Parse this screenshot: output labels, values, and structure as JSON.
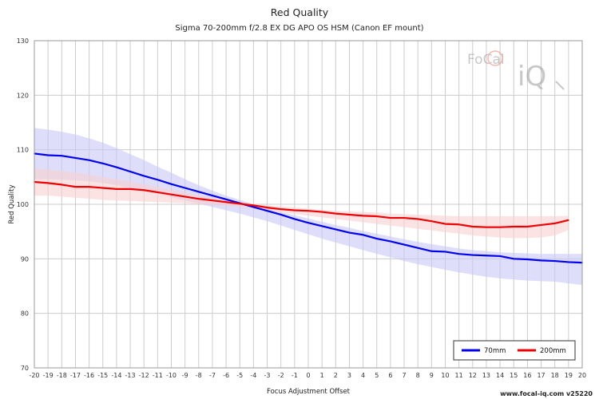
{
  "chart_data": {
    "type": "line",
    "title": "Red Quality",
    "subtitle": "Sigma 70-200mm f/2.8 EX DG APO OS HSM (Canon EF mount)",
    "xlabel": "Focus Adjustment Offset",
    "ylabel": "Red Quality",
    "xlim": [
      -20,
      20
    ],
    "ylim": [
      70,
      130
    ],
    "x_ticks": [
      -20,
      -19,
      -18,
      -17,
      -16,
      -15,
      -14,
      -13,
      -12,
      -11,
      -10,
      -9,
      -8,
      -7,
      -6,
      -5,
      -4,
      -3,
      -2,
      -1,
      0,
      1,
      2,
      3,
      4,
      5,
      6,
      7,
      8,
      9,
      10,
      11,
      12,
      13,
      14,
      15,
      16,
      17,
      18,
      19,
      20
    ],
    "y_ticks": [
      70,
      80,
      90,
      100,
      110,
      120,
      130
    ],
    "grid": true,
    "legend_position": "bottom-right",
    "series": [
      {
        "name": "70mm",
        "color": "#0000ee",
        "band_color": "#c8c8f8",
        "x": [
          -20,
          -19,
          -18,
          -17,
          -16,
          -15,
          -14,
          -13,
          -12,
          -11,
          -10,
          -9,
          -8,
          -7,
          -6,
          -5,
          -4,
          -3,
          -2,
          -1,
          0,
          1,
          2,
          3,
          4,
          5,
          6,
          7,
          8,
          9,
          10,
          11,
          12,
          13,
          14,
          15,
          16,
          17,
          18,
          19,
          20
        ],
        "values": [
          109.3,
          109.0,
          108.9,
          108.5,
          108.1,
          107.5,
          106.8,
          106.0,
          105.2,
          104.5,
          103.7,
          103.0,
          102.3,
          101.6,
          100.9,
          100.2,
          99.5,
          98.8,
          98.1,
          97.3,
          96.6,
          96.0,
          95.4,
          94.8,
          94.4,
          93.7,
          93.2,
          92.6,
          92.0,
          91.4,
          91.3,
          90.9,
          90.7,
          90.6,
          90.5,
          90.0,
          89.9,
          89.7,
          89.6,
          89.4,
          89.3
        ],
        "upper": [
          114.0,
          113.7,
          113.3,
          112.8,
          112.1,
          111.3,
          110.3,
          109.2,
          108.1,
          106.9,
          105.8,
          104.6,
          103.5,
          102.5,
          101.6,
          100.8,
          100.0,
          99.3,
          98.6,
          98.0,
          97.4,
          96.8,
          96.2,
          95.7,
          95.1,
          94.6,
          94.1,
          93.6,
          93.1,
          92.7,
          92.3,
          91.9,
          91.6,
          91.4,
          91.2,
          91.1,
          91.0,
          90.9,
          90.9,
          90.9,
          90.9
        ],
        "lower": [
          104.6,
          104.6,
          104.5,
          104.4,
          104.2,
          103.9,
          103.5,
          103.0,
          102.5,
          101.9,
          101.3,
          100.7,
          100.1,
          99.5,
          98.9,
          98.3,
          97.6,
          96.9,
          96.1,
          95.3,
          94.5,
          93.7,
          93.0,
          92.3,
          91.6,
          90.9,
          90.3,
          89.6,
          89.0,
          88.5,
          88.0,
          87.5,
          87.1,
          86.7,
          86.4,
          86.2,
          86.0,
          85.9,
          85.8,
          85.5,
          85.2
        ]
      },
      {
        "name": "200mm",
        "color": "#ee0000",
        "band_color": "#f8d0d0",
        "x": [
          -20,
          -19,
          -18,
          -17,
          -16,
          -15,
          -14,
          -13,
          -12,
          -11,
          -10,
          -9,
          -8,
          -7,
          -6,
          -5,
          -4,
          -3,
          -2,
          -1,
          0,
          1,
          2,
          3,
          4,
          5,
          6,
          7,
          8,
          9,
          10,
          11,
          12,
          13,
          14,
          15,
          16,
          17,
          18,
          19
        ],
        "values": [
          104.1,
          103.9,
          103.6,
          103.2,
          103.2,
          103.0,
          102.8,
          102.8,
          102.6,
          102.2,
          101.8,
          101.4,
          101.0,
          100.7,
          100.4,
          100.1,
          99.8,
          99.4,
          99.1,
          98.9,
          98.8,
          98.6,
          98.3,
          98.1,
          97.9,
          97.8,
          97.5,
          97.5,
          97.3,
          96.9,
          96.4,
          96.3,
          95.9,
          95.8,
          95.8,
          95.9,
          95.9,
          96.2,
          96.5,
          97.1
        ],
        "upper": [
          106.6,
          106.4,
          106.1,
          105.8,
          105.4,
          105.0,
          104.6,
          104.2,
          103.7,
          103.2,
          102.7,
          102.2,
          101.7,
          101.2,
          100.8,
          100.4,
          100.1,
          99.8,
          99.6,
          99.4,
          99.2,
          99.0,
          98.8,
          98.7,
          98.6,
          98.5,
          98.3,
          98.2,
          98.1,
          98.0,
          97.9,
          97.8,
          97.8,
          97.8,
          97.8,
          97.8,
          97.8,
          97.8,
          97.8,
          97.9
        ],
        "lower": [
          101.6,
          101.6,
          101.4,
          101.2,
          101.0,
          100.8,
          100.7,
          100.6,
          100.5,
          100.4,
          100.3,
          100.2,
          100.0,
          99.9,
          99.7,
          99.5,
          99.2,
          98.9,
          98.5,
          98.2,
          97.9,
          97.6,
          97.3,
          97.0,
          96.7,
          96.4,
          96.1,
          95.8,
          95.5,
          95.2,
          94.9,
          94.6,
          94.3,
          94.1,
          93.9,
          93.8,
          93.8,
          93.9,
          94.3,
          95.3
        ]
      }
    ]
  },
  "logo": {
    "text_line1": "FoCal",
    "text_line2": "iQ"
  },
  "footer": "www.focal-iq.com  v25220"
}
